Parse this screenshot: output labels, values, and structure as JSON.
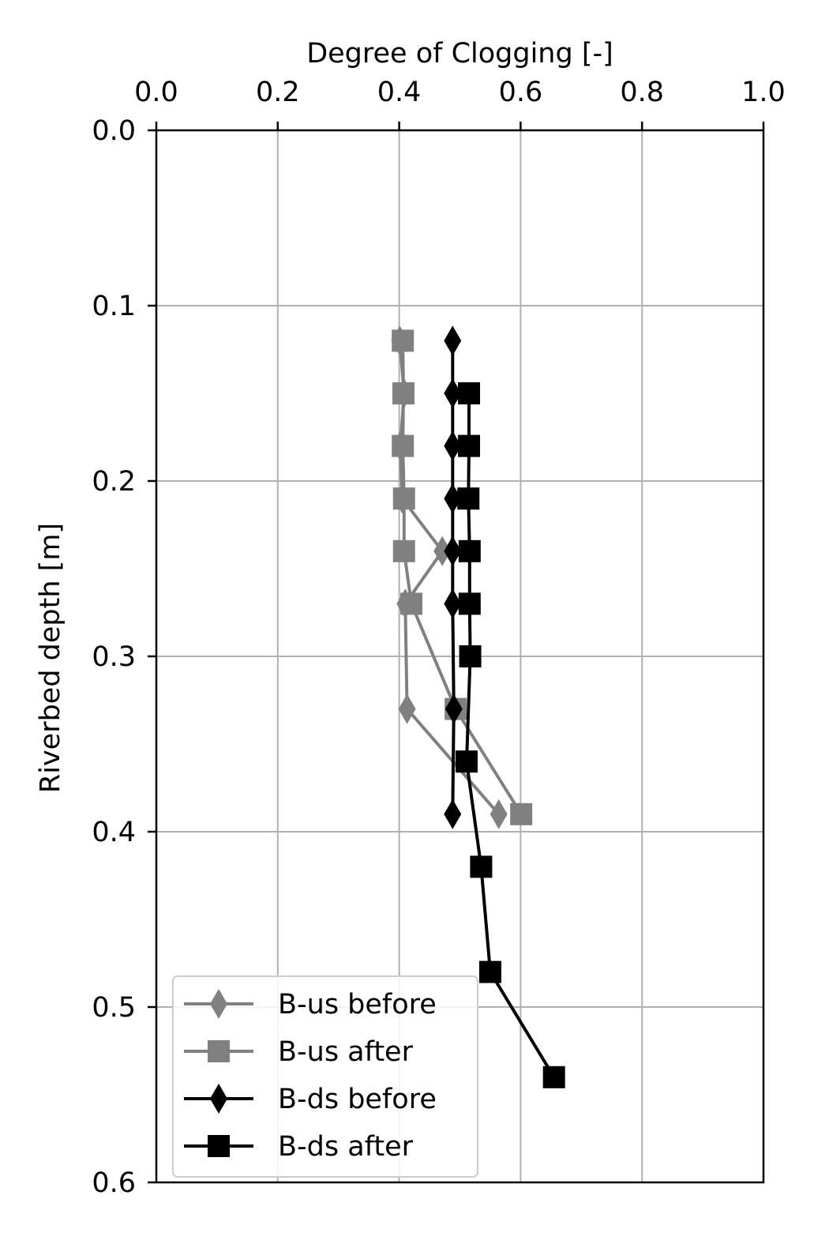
{
  "chart_data": {
    "type": "line",
    "title": "",
    "xlabel": "Degree of Clogging [-]",
    "ylabel": "Riverbed depth [m]",
    "xlim": [
      0.0,
      1.0
    ],
    "ylim": [
      0.0,
      0.6
    ],
    "y_inverted": true,
    "x_axis_position": "top",
    "xticks": [
      "0.0",
      "0.2",
      "0.4",
      "0.6",
      "0.8",
      "1.0"
    ],
    "yticks": [
      "0.0",
      "0.1",
      "0.2",
      "0.3",
      "0.4",
      "0.5",
      "0.6"
    ],
    "grid": true,
    "legend_position": "lower-left",
    "series": [
      {
        "name": "B-us before",
        "color": "#808080",
        "marker": "diamond",
        "x": [
          0.401,
          0.408,
          0.402,
          0.405,
          0.471,
          0.41,
          0.413,
          0.564
        ],
        "y": [
          0.12,
          0.15,
          0.18,
          0.21,
          0.24,
          0.27,
          0.33,
          0.39
        ]
      },
      {
        "name": "B-us after",
        "color": "#808080",
        "marker": "square",
        "x": [
          0.406,
          0.407,
          0.406,
          0.408,
          0.408,
          0.42,
          0.493,
          0.601
        ],
        "y": [
          0.12,
          0.15,
          0.18,
          0.21,
          0.24,
          0.27,
          0.33,
          0.39
        ]
      },
      {
        "name": "B-ds before",
        "color": "#000000",
        "marker": "diamond",
        "x": [
          0.488,
          0.488,
          0.488,
          0.488,
          0.488,
          0.488,
          0.49,
          0.488
        ],
        "y": [
          0.12,
          0.15,
          0.18,
          0.21,
          0.24,
          0.27,
          0.33,
          0.39
        ]
      },
      {
        "name": "B-ds after",
        "color": "#000000",
        "marker": "square",
        "x": [
          0.515,
          0.515,
          0.514,
          0.516,
          0.516,
          0.517,
          0.511,
          0.535,
          0.55,
          0.655
        ],
        "y": [
          0.15,
          0.18,
          0.21,
          0.24,
          0.27,
          0.3,
          0.36,
          0.42,
          0.48,
          0.54
        ]
      }
    ]
  }
}
